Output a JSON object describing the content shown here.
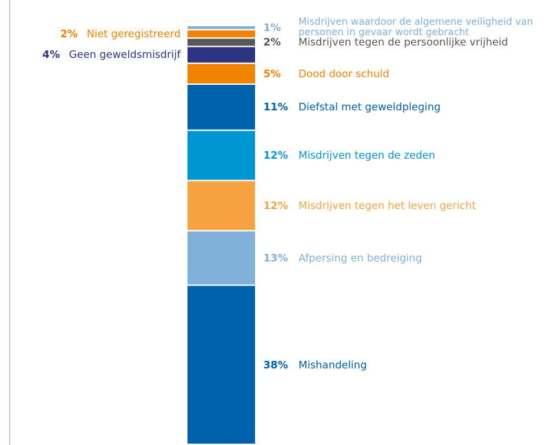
{
  "chart_data": {
    "type": "stacked-bar",
    "ylim": [
      0,
      100
    ],
    "series": [
      {
        "name": "Mishandeling",
        "color": "#0061ad",
        "values": [
          38
        ],
        "value_labels": [
          "38%"
        ],
        "label_side": "right"
      },
      {
        "name": "Afpersing en bedreiging",
        "color": "#80b1d8",
        "values": [
          13
        ],
        "value_labels": [
          "13%"
        ],
        "label_side": "right"
      },
      {
        "name": "Misdrijven tegen het leven gericht",
        "color": "#f5a340",
        "values": [
          12
        ],
        "value_labels": [
          "12%"
        ],
        "label_side": "right"
      },
      {
        "name": "Misdrijven tegen de zeden",
        "color": "#0096d5",
        "values": [
          12
        ],
        "value_labels": [
          "12%"
        ],
        "label_side": "right"
      },
      {
        "name": "Diefstal met geweldpleging",
        "color": "#0061ad",
        "values": [
          11
        ],
        "value_labels": [
          "11%"
        ],
        "label_side": "right"
      },
      {
        "name": "Dood door schuld",
        "color": "#f08300",
        "values": [
          5
        ],
        "value_labels": [
          "5%"
        ],
        "label_side": "right"
      },
      {
        "name": "Geen geweldsmisdrijf",
        "color": "#2d3582",
        "values": [
          4
        ],
        "value_labels": [
          "4%"
        ],
        "label_side": "left"
      },
      {
        "name": "Misdrijven tegen de persoonlijke vrijheid",
        "color": "#575756",
        "values": [
          2
        ],
        "value_labels": [
          "2%"
        ],
        "label_side": "right"
      },
      {
        "name": "Niet geregistreerd",
        "color": "#f08300",
        "values": [
          2
        ],
        "value_labels": [
          "2%"
        ],
        "label_side": "left"
      },
      {
        "name": "Misdrijven waardoor de algemene veiligheid van personen in gevaar wordt gebracht",
        "color": "#80b1d8",
        "values": [
          1
        ],
        "value_labels": [
          "1%"
        ],
        "label_side": "right"
      }
    ]
  }
}
